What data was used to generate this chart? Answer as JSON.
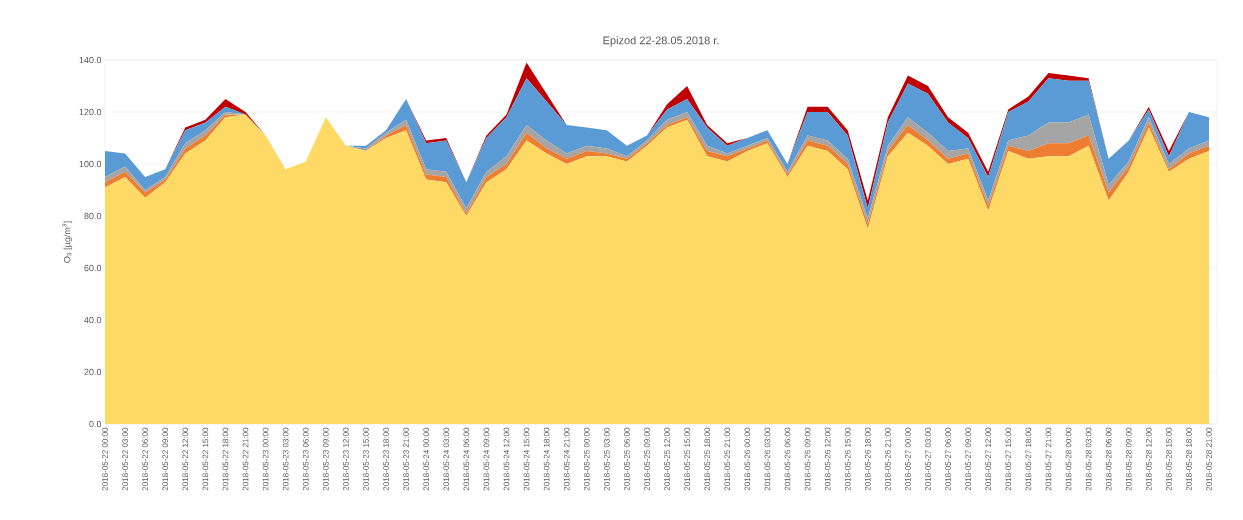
{
  "chart_data": {
    "type": "area",
    "stacked": true,
    "title": "Epizod 22-28.05.2018 r.",
    "ylabel": "O$_{3}$ [µg/m$^{3}$]",
    "grid": "y",
    "ylim": [
      0,
      140
    ],
    "yticks": [
      {
        "value": 0,
        "label": "0.0"
      },
      {
        "value": 20,
        "label": "20.0"
      },
      {
        "value": 40,
        "label": "40.0"
      },
      {
        "value": 60,
        "label": "60.0"
      },
      {
        "value": 80,
        "label": "80.0"
      },
      {
        "value": 100,
        "label": "100.0"
      },
      {
        "value": 120,
        "label": "120.0"
      },
      {
        "value": 140,
        "label": "140.0"
      }
    ],
    "categories": [
      "2018-05-22 00:00",
      "2018-05-22 03:00",
      "2018-05-22 06:00",
      "2018-05-22 09:00",
      "2018-05-22 12:00",
      "2018-05-22 15:00",
      "2018-05-22 18:00",
      "2018-05-22 21:00",
      "2018-05-23 00:00",
      "2018-05-23 03:00",
      "2018-05-23 06:00",
      "2018-05-23 09:00",
      "2018-05-23 12:00",
      "2018-05-23 15:00",
      "2018-05-23 18:00",
      "2018-05-23 21:00",
      "2018-05-24 00:00",
      "2018-05-24 03:00",
      "2018-05-24 06:00",
      "2018-05-24 09:00",
      "2018-05-24 12:00",
      "2018-05-24 15:00",
      "2018-05-24 18:00",
      "2018-05-24 21:00",
      "2018-05-25 00:00",
      "2018-05-25 03:00",
      "2018-05-25 06:00",
      "2018-05-25 09:00",
      "2018-05-25 12:00",
      "2018-05-25 15:00",
      "2018-05-25 18:00",
      "2018-05-25 21:00",
      "2018-05-26 00:00",
      "2018-05-26 03:00",
      "2018-05-26 06:00",
      "2018-05-26 09:00",
      "2018-05-26 12:00",
      "2018-05-26 15:00",
      "2018-05-26 18:00",
      "2018-05-26 21:00",
      "2018-05-27 00:00",
      "2018-05-27 03:00",
      "2018-05-27 06:00",
      "2018-05-27 09:00",
      "2018-05-27 12:00",
      "2018-05-27 15:00",
      "2018-05-27 18:00",
      "2018-05-27 21:00",
      "2018-05-28 00:00",
      "2018-05-28 03:00",
      "2018-05-28 06:00",
      "2018-05-28 09:00",
      "2018-05-28 12:00",
      "2018-05-28 15:00",
      "2018-05-28 18:00",
      "2018-05-28 21:00"
    ],
    "series": [
      {
        "color": "#ffd966",
        "values": [
          91,
          95,
          87,
          93,
          104,
          109,
          118,
          119,
          111,
          98,
          101,
          118,
          107,
          105,
          110,
          113,
          94,
          93,
          80,
          93,
          98,
          109,
          104,
          100,
          103,
          103,
          101,
          107,
          114,
          117,
          103,
          101,
          105,
          108,
          95,
          107,
          105,
          98,
          75,
          103,
          112,
          107,
          100,
          102,
          82,
          105,
          102,
          103,
          103,
          107,
          86,
          97,
          114,
          97,
          102,
          105
        ]
      },
      {
        "color": "#ed7d31",
        "values": [
          2,
          2,
          2,
          1,
          2,
          2,
          1,
          0,
          0,
          0,
          0,
          0,
          0,
          0,
          1,
          2,
          2,
          2,
          1,
          2,
          2,
          3,
          2,
          2,
          2,
          1,
          1,
          1,
          1,
          1,
          2,
          2,
          1,
          1,
          1,
          2,
          2,
          2,
          2,
          2,
          3,
          2,
          2,
          2,
          2,
          2,
          3,
          5,
          5,
          4,
          3,
          2,
          2,
          1,
          2,
          2
        ]
      },
      {
        "color": "#a5a5a5",
        "values": [
          2,
          2,
          1,
          1,
          2,
          2,
          1,
          0,
          0,
          0,
          0,
          0,
          0,
          1,
          1,
          2,
          2,
          2,
          2,
          2,
          3,
          3,
          3,
          2,
          2,
          2,
          1,
          1,
          2,
          2,
          2,
          1,
          1,
          1,
          1,
          2,
          2,
          2,
          2,
          2,
          3,
          3,
          3,
          2,
          2,
          2,
          6,
          8,
          8,
          8,
          3,
          2,
          2,
          2,
          2,
          2
        ]
      },
      {
        "color": "#5b9bd5",
        "values": [
          10,
          5,
          5,
          3,
          5,
          3,
          2,
          0,
          0,
          0,
          0,
          0,
          0,
          1,
          1,
          8,
          10,
          12,
          10,
          13,
          15,
          18,
          15,
          11,
          7,
          7,
          4,
          2,
          4,
          5,
          7,
          3,
          3,
          3,
          3,
          9,
          11,
          9,
          4,
          9,
          13,
          15,
          11,
          4,
          9,
          11,
          13,
          17,
          16,
          13,
          10,
          8,
          3,
          3,
          14,
          9
        ]
      },
      {
        "color": "#c00000",
        "values": [
          0,
          0,
          0,
          0,
          1,
          1,
          3,
          1,
          0,
          0,
          0,
          0,
          0,
          0,
          0,
          0,
          1,
          1,
          0,
          1,
          1,
          6,
          3,
          0,
          0,
          0,
          0,
          0,
          2,
          5,
          1,
          1,
          0,
          0,
          0,
          2,
          2,
          2,
          3,
          2,
          3,
          3,
          2,
          2,
          2,
          1,
          2,
          2,
          2,
          1,
          0,
          0,
          1,
          2,
          0,
          0
        ]
      }
    ]
  }
}
